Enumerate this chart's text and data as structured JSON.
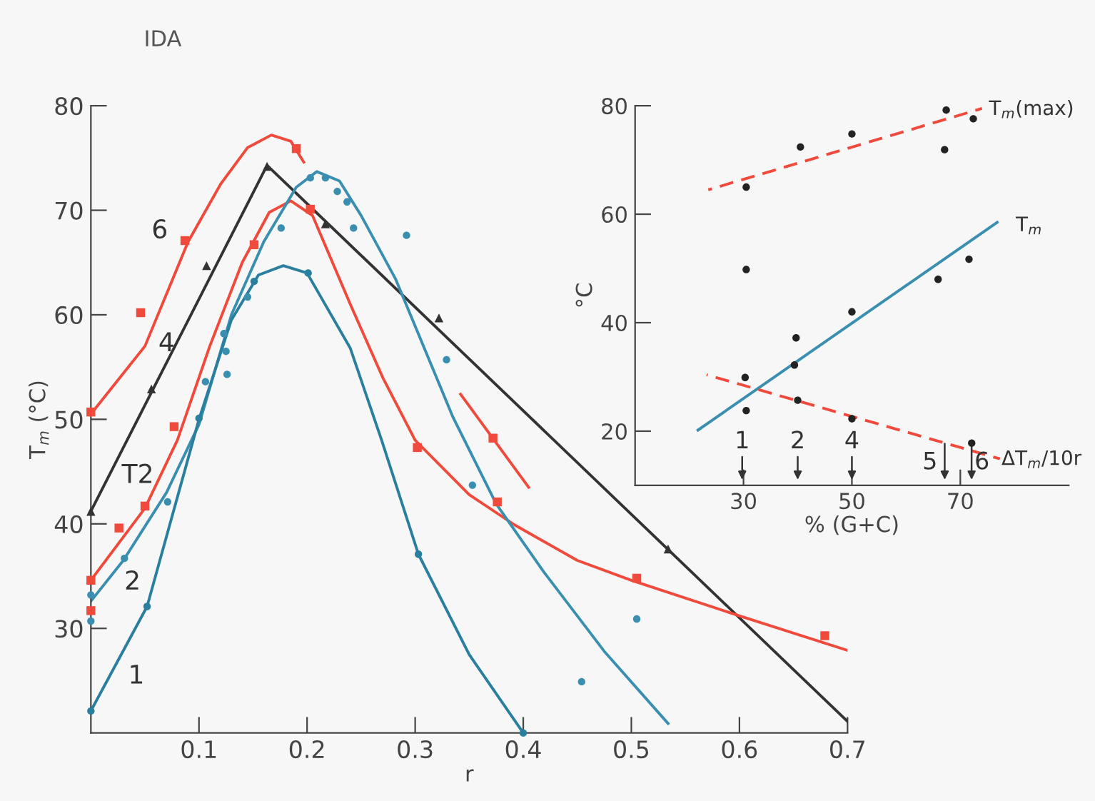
{
  "chart_data": [
    {
      "type": "line",
      "title": "IDA",
      "xlabel": "r",
      "ylabel": "T$_{m}$ (°C)",
      "xlim": [
        0,
        0.7
      ],
      "ylim": [
        20,
        80
      ],
      "xticks": [
        0.1,
        0.2,
        0.3,
        0.4,
        0.5,
        0.6,
        0.7
      ],
      "yticks": [
        30,
        40,
        50,
        60,
        70,
        80
      ],
      "grid": false,
      "legend": false,
      "series": [
        {
          "type": "line",
          "color": "#f04a3c",
          "x": [
            0,
            0.05,
            0.09,
            0.12,
            0.145,
            0.167,
            0.185,
            0.197,
            0.27,
            0.342,
            0.405
          ],
          "values": [
            50.5,
            57,
            67,
            72.5,
            76,
            77.2,
            76.6,
            74.6,
            null,
            52.4,
            43.5
          ]
        },
        {
          "type": "scatter",
          "color": "#f04a3c",
          "marker": "square",
          "x": [
            0,
            0.046,
            0.087,
            0.19,
            0.372
          ],
          "values": [
            50.7,
            60.2,
            67.1,
            75.9,
            48.2
          ]
        },
        {
          "type": "line",
          "color": "#333333",
          "x": [
            0,
            0.163,
            0.7
          ],
          "values": [
            41.2,
            74.3,
            21.1
          ]
        },
        {
          "type": "scatter",
          "color": "#333333",
          "marker": "triangle",
          "x": [
            0,
            0.056,
            0.107,
            0.163,
            0.217,
            0.322,
            0.534
          ],
          "values": [
            41.2,
            52.9,
            64.7,
            74.2,
            68.7,
            59.7,
            37.6
          ]
        },
        {
          "type": "line",
          "color": "#f04a3c",
          "x": [
            0,
            0.05,
            0.08,
            0.11,
            0.14,
            0.165,
            0.185,
            0.205,
            0.24,
            0.27,
            0.3,
            0.35,
            0.392,
            0.45,
            0.5,
            0.6,
            0.7
          ],
          "values": [
            34.6,
            41.5,
            48,
            57,
            65,
            69.8,
            70.9,
            69.5,
            61,
            54,
            48,
            42.8,
            39.9,
            36.5,
            34.6,
            31.2,
            27.9
          ]
        },
        {
          "type": "scatter",
          "color": "#f04a3c",
          "marker": "square",
          "x": [
            0,
            0,
            0.026,
            0.05,
            0.077,
            0.151,
            0.203,
            0.302,
            0.376,
            0.505,
            0.679
          ],
          "values": [
            31.7,
            34.6,
            39.6,
            41.7,
            49.3,
            66.7,
            70.1,
            47.3,
            42.1,
            34.8,
            29.3
          ]
        },
        {
          "type": "line",
          "color": "#3a8fb0",
          "x": [
            0,
            0.03,
            0.07,
            0.1,
            0.13,
            0.16,
            0.19,
            0.209,
            0.23,
            0.25,
            0.282,
            0.335,
            0.375,
            0.419,
            0.475,
            0.534
          ],
          "values": [
            32.6,
            36.5,
            43,
            49.5,
            60,
            67,
            72.2,
            73.7,
            72.8,
            69.5,
            63.4,
            50.2,
            41.9,
            35.4,
            27.8,
            20.9
          ]
        },
        {
          "type": "scatter",
          "color": "#3a8fb0",
          "marker": "circle",
          "x": [
            0,
            0,
            0.031,
            0.071,
            0.106,
            0.126,
            0.123,
            0.125,
            0.145,
            0.176,
            0.203,
            0.217,
            0.228,
            0.237,
            0.243,
            0.292,
            0.329,
            0.353,
            0.454,
            0.505
          ],
          "values": [
            33.2,
            30.7,
            36.7,
            42.1,
            53.6,
            54.3,
            58.2,
            56.5,
            61.7,
            68.3,
            73.1,
            73.1,
            71.8,
            70.8,
            68.3,
            67.6,
            55.7,
            43.7,
            24.9,
            30.9
          ]
        },
        {
          "type": "line",
          "color": "#2a7f9e",
          "x": [
            0,
            0.052,
            0.1,
            0.13,
            0.155,
            0.178,
            0.2,
            0.24,
            0.269,
            0.303,
            0.35,
            0.4
          ],
          "values": [
            22.1,
            32.1,
            50,
            59.5,
            63.8,
            64.7,
            64,
            56.8,
            48,
            37.1,
            27.5,
            20
          ]
        },
        {
          "type": "scatter",
          "color": "#2a7f9e",
          "marker": "circle",
          "x": [
            0,
            0.052,
            0.1,
            0.151,
            0.201,
            0.303,
            0.4
          ],
          "values": [
            22.1,
            32.1,
            50.1,
            63.2,
            64,
            37.1,
            20
          ]
        }
      ],
      "annotations": [
        "6",
        "4",
        "T2",
        "2",
        "1"
      ]
    },
    {
      "type": "line",
      "xlabel": "% (G+C)",
      "ylabel": "°C",
      "xlim": [
        10,
        90
      ],
      "ylim": [
        10,
        80
      ],
      "xticks": [
        30,
        50,
        70
      ],
      "yticks": [
        20,
        40,
        60,
        80
      ],
      "grid": false,
      "legend": false,
      "series": [
        {
          "type": "line",
          "color": "#f04a3c",
          "line_style": "dashed",
          "x": [
            23.5,
            74
          ],
          "values": [
            64.5,
            79.5
          ]
        },
        {
          "type": "scatter",
          "color": "#222222",
          "marker": "circle",
          "x": [
            30.5,
            40.5,
            50,
            67.4,
            67.1,
            72.4
          ],
          "values": [
            65,
            72.4,
            74.8,
            79.2,
            71.9,
            77.6
          ]
        },
        {
          "type": "scatter",
          "color": "#222222",
          "marker": "circle",
          "x": [
            30.5
          ],
          "values": [
            49.8
          ]
        },
        {
          "type": "line",
          "color": "#3a8fb0",
          "line_style": "solid",
          "x": [
            21.6,
            76.8
          ],
          "values": [
            20.2,
            58.5
          ]
        },
        {
          "type": "scatter",
          "color": "#222222",
          "marker": "circle",
          "x": [
            30.5,
            39.4,
            39.7,
            50,
            65.9,
            71.6
          ],
          "values": [
            23.8,
            32.2,
            37.2,
            42,
            48,
            51.7
          ]
        },
        {
          "type": "line",
          "color": "#f04a3c",
          "line_style": "dashed",
          "x": [
            23.2,
            77.3
          ],
          "values": [
            30.4,
            14.9
          ]
        },
        {
          "type": "scatter",
          "color": "#222222",
          "marker": "circle",
          "x": [
            30.3,
            40,
            50,
            72.1
          ],
          "values": [
            29.9,
            25.7,
            22.3,
            17.8
          ]
        }
      ],
      "annotations": [
        "T$_{m}$(max)",
        "T$_{m}$",
        "ΔT$_{m}$/10r",
        "1",
        "2",
        "4",
        "5",
        "6"
      ]
    }
  ]
}
